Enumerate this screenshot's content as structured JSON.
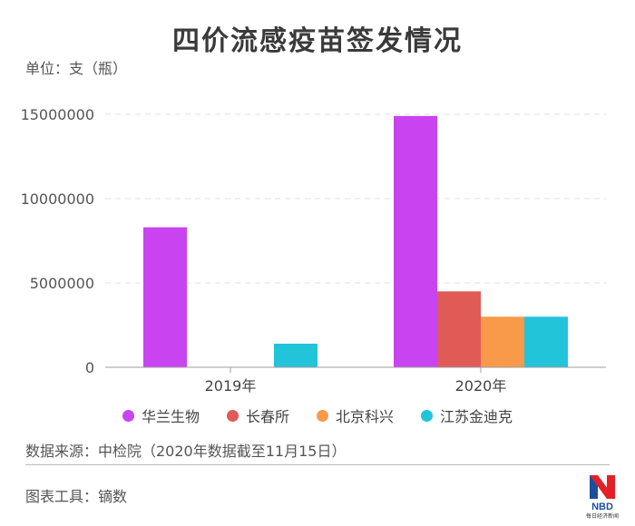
{
  "header": {
    "title": "四价流感疫苗签发情况",
    "unit": "单位：支（瓶）"
  },
  "footer": {
    "source": "数据来源：中检院（2020年数据截至11月15日）",
    "tool": "图表工具：镝数",
    "logo_text": "NBD",
    "logo_subtext": "每日经济新闻"
  },
  "chart_data": {
    "type": "bar",
    "categories": [
      "2019年",
      "2020年"
    ],
    "series": [
      {
        "name": "华兰生物",
        "color": "#c944f0",
        "values": [
          8300000,
          14900000
        ]
      },
      {
        "name": "长春所",
        "color": "#e05a56",
        "values": [
          0,
          4500000
        ]
      },
      {
        "name": "北京科兴",
        "color": "#f99a4a",
        "values": [
          0,
          3000000
        ]
      },
      {
        "name": "江苏金迪克",
        "color": "#22c4da",
        "values": [
          1400000,
          3000000
        ]
      }
    ],
    "yticks": [
      0,
      5000000,
      10000000,
      15000000
    ],
    "ylim": [
      0,
      15000000
    ],
    "grid": true,
    "legend_position": "bottom"
  }
}
